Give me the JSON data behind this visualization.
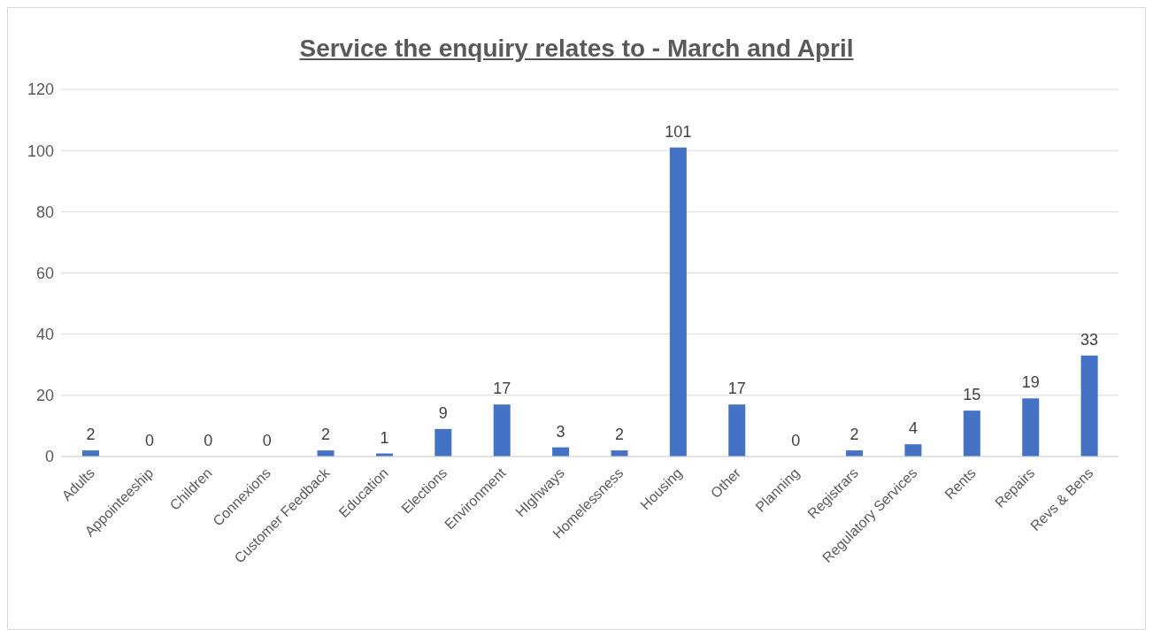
{
  "chart_data": {
    "type": "bar",
    "title": "Service the enquiry relates to - March and April",
    "categories": [
      "Adults",
      "Appointeeship",
      "Children",
      "Connexions",
      "Customer Feedback",
      "Education",
      "Elections",
      "Environment",
      "HIghways",
      "Homelessness",
      "Housing",
      "Other",
      "Planning",
      "Registrars",
      "Regulatory Services",
      "Rents",
      "Repairs",
      "Revs & Bens"
    ],
    "values": [
      2,
      0,
      0,
      0,
      2,
      1,
      9,
      17,
      3,
      2,
      101,
      17,
      0,
      2,
      4,
      15,
      19,
      33
    ],
    "color": "#4472c4",
    "ylim": [
      0,
      120
    ],
    "yticks": [
      0,
      20,
      40,
      60,
      80,
      100,
      120
    ],
    "grid": "y",
    "data_labels": true
  }
}
